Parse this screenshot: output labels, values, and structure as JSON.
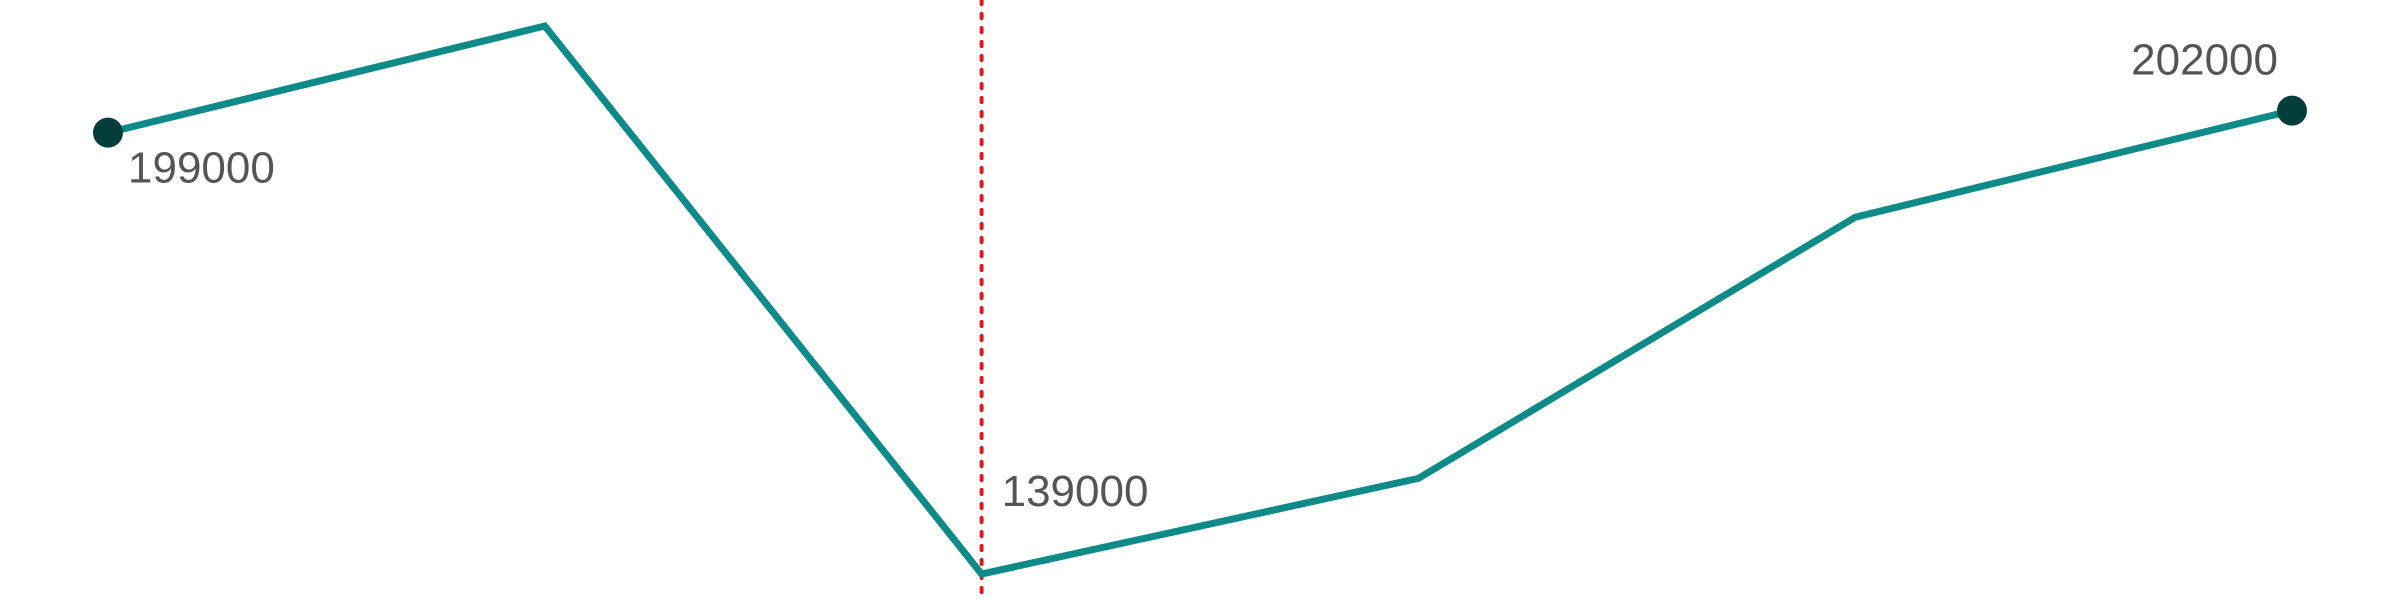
{
  "chart_data": {
    "type": "line",
    "x": [
      1,
      2,
      3,
      4,
      5,
      6
    ],
    "series": [
      {
        "values": [
          199000,
          213500,
          139000,
          152000,
          187500,
          202000
        ]
      }
    ],
    "data_labels": [
      {
        "index": 0,
        "text": "199000"
      },
      {
        "index": 2,
        "text": "139000"
      },
      {
        "index": 5,
        "text": "202000"
      }
    ],
    "endpoint_markers": [
      0,
      5
    ],
    "reference_line": {
      "x": 3,
      "style": "dotted"
    },
    "ylim": [
      139000,
      213500
    ],
    "grid": false,
    "axes_visible": false,
    "colors": {
      "line": "#0e8a88",
      "marker": "#043e3b",
      "reference_line": "#e8161b",
      "label": "#555555"
    }
  }
}
